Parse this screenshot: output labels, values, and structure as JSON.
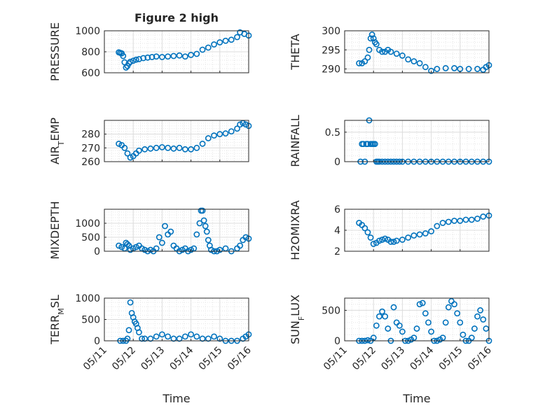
{
  "figure": {
    "title": "Figure 2 high"
  },
  "chart_data": [
    {
      "type": "scatter",
      "panel": "pressure",
      "title": "Figure 2 high",
      "ylabel": "PRESSURE",
      "ylabel_parts": {
        "base": "PRESSURE"
      },
      "ylim": [
        600,
        1000
      ],
      "yticks": [
        600,
        800,
        1000
      ],
      "grid": true,
      "x": [
        1.5,
        1.55,
        1.6,
        1.65,
        1.7,
        1.75,
        1.8,
        1.85,
        1.9,
        2.0,
        2.1,
        2.2,
        2.35,
        2.5,
        2.65,
        2.8,
        3.0,
        3.2,
        3.4,
        3.6,
        3.8,
        4.0,
        4.2,
        4.4,
        4.6,
        4.8,
        5.0,
        5.2,
        5.4,
        5.6,
        5.7,
        5.85,
        6.0
      ],
      "values": [
        795,
        790,
        785,
        760,
        700,
        650,
        665,
        690,
        705,
        715,
        725,
        730,
        740,
        745,
        750,
        755,
        750,
        755,
        760,
        765,
        755,
        770,
        780,
        820,
        840,
        870,
        890,
        905,
        915,
        940,
        985,
        970,
        955
      ]
    },
    {
      "type": "scatter",
      "panel": "theta",
      "ylabel": "THETA",
      "ylabel_parts": {
        "base": "THETA"
      },
      "ylim": [
        289,
        300
      ],
      "yticks": [
        290,
        295,
        300
      ],
      "grid": true,
      "x": [
        1.5,
        1.6,
        1.7,
        1.8,
        1.85,
        1.9,
        1.95,
        2.0,
        2.05,
        2.1,
        2.2,
        2.3,
        2.4,
        2.5,
        2.6,
        2.8,
        3.0,
        3.2,
        3.4,
        3.6,
        3.8,
        4.0,
        4.2,
        4.5,
        4.8,
        5.0,
        5.3,
        5.6,
        5.8,
        5.9,
        6.0
      ],
      "values": [
        291.5,
        291.5,
        292,
        293,
        295,
        298,
        299,
        298,
        297,
        296.5,
        295,
        294.5,
        294.5,
        295,
        294.5,
        294,
        293.5,
        292.5,
        292,
        291.5,
        290.5,
        289.5,
        290,
        290.2,
        290.2,
        290,
        290,
        290,
        289.8,
        290.5,
        291
      ]
    },
    {
      "type": "scatter",
      "panel": "air_temp",
      "ylabel": "AIR_TEMP",
      "ylabel_parts": {
        "base": "AIR",
        "sub": "T",
        "rest": "EMP"
      },
      "ylim": [
        260,
        290
      ],
      "yticks": [
        260,
        270,
        280
      ],
      "grid": true,
      "x": [
        1.5,
        1.6,
        1.7,
        1.8,
        1.9,
        2.0,
        2.1,
        2.2,
        2.4,
        2.6,
        2.8,
        3.0,
        3.2,
        3.4,
        3.6,
        3.8,
        4.0,
        4.2,
        4.4,
        4.6,
        4.8,
        5.0,
        5.2,
        5.4,
        5.6,
        5.7,
        5.8,
        5.9,
        6.0
      ],
      "values": [
        273,
        272,
        270,
        266,
        263,
        264,
        266,
        268,
        269,
        269.5,
        270,
        270.5,
        270,
        269.5,
        270,
        269,
        269,
        270,
        273,
        277,
        279,
        280,
        280.5,
        282,
        284,
        287,
        288,
        287,
        286
      ]
    },
    {
      "type": "scatter",
      "panel": "rainfall",
      "ylabel": "RAINFALL",
      "ylabel_parts": {
        "base": "RAINFALL"
      },
      "ylim": [
        0,
        0.7
      ],
      "yticks": [
        0,
        0.5
      ],
      "grid": true,
      "x": [
        1.55,
        1.6,
        1.65,
        1.7,
        1.75,
        1.8,
        1.85,
        1.9,
        1.95,
        2.0,
        2.05,
        2.1,
        2.15,
        2.2,
        2.3,
        2.4,
        2.5,
        2.6,
        2.7,
        2.8,
        2.9,
        3.0,
        3.2,
        3.4,
        3.6,
        3.8,
        4.0,
        4.2,
        4.4,
        4.6,
        4.8,
        5.0,
        5.2,
        5.4,
        5.6,
        5.8,
        6.0
      ],
      "values": [
        0,
        0.3,
        0.3,
        0,
        0.3,
        0.3,
        0.7,
        0.3,
        0.3,
        0.3,
        0.3,
        0,
        0,
        0,
        0,
        0,
        0,
        0,
        0,
        0,
        0,
        0,
        0,
        0,
        0,
        0,
        0,
        0,
        0,
        0,
        0,
        0,
        0,
        0,
        0,
        0,
        0
      ]
    },
    {
      "type": "scatter",
      "panel": "mixdepth",
      "ylabel": "MIXDEPTH",
      "ylabel_parts": {
        "base": "MIXDEPTH"
      },
      "ylim": [
        0,
        1500
      ],
      "yticks": [
        0,
        500,
        1000
      ],
      "grid": true,
      "x": [
        1.5,
        1.6,
        1.7,
        1.75,
        1.8,
        1.85,
        1.9,
        2.0,
        2.1,
        2.2,
        2.3,
        2.4,
        2.5,
        2.6,
        2.7,
        2.8,
        2.9,
        3.0,
        3.1,
        3.2,
        3.3,
        3.4,
        3.5,
        3.6,
        3.7,
        3.8,
        3.9,
        4.0,
        4.1,
        4.2,
        4.3,
        4.35,
        4.4,
        4.45,
        4.5,
        4.55,
        4.6,
        4.65,
        4.7,
        4.8,
        4.9,
        5.0,
        5.2,
        5.4,
        5.6,
        5.7,
        5.8,
        5.9,
        6.0
      ],
      "values": [
        200,
        150,
        100,
        300,
        250,
        200,
        50,
        100,
        150,
        200,
        100,
        50,
        0,
        50,
        0,
        100,
        500,
        300,
        900,
        600,
        700,
        200,
        100,
        0,
        50,
        100,
        0,
        50,
        100,
        600,
        1000,
        1450,
        1450,
        1100,
        900,
        700,
        400,
        200,
        50,
        0,
        0,
        50,
        100,
        0,
        100,
        200,
        400,
        500,
        450
      ]
    },
    {
      "type": "scatter",
      "panel": "h2omixra",
      "ylabel": "H2OMIXRA",
      "ylabel_parts": {
        "base": "H2OMIXRA"
      },
      "ylim": [
        2,
        6
      ],
      "yticks": [
        2,
        4,
        6
      ],
      "grid": true,
      "x": [
        1.5,
        1.6,
        1.7,
        1.8,
        1.9,
        2.0,
        2.1,
        2.2,
        2.3,
        2.4,
        2.5,
        2.6,
        2.7,
        2.8,
        3.0,
        3.2,
        3.4,
        3.6,
        3.8,
        4.0,
        4.2,
        4.4,
        4.6,
        4.8,
        5.0,
        5.2,
        5.4,
        5.6,
        5.8,
        6.0
      ],
      "values": [
        4.7,
        4.5,
        4.2,
        3.8,
        3.3,
        2.7,
        2.8,
        3.0,
        3.1,
        3.2,
        3.1,
        2.9,
        2.9,
        3.0,
        3.1,
        3.3,
        3.5,
        3.6,
        3.7,
        3.9,
        4.4,
        4.7,
        4.8,
        4.9,
        4.9,
        5.0,
        5.0,
        5.1,
        5.3,
        5.4
      ]
    },
    {
      "type": "scatter",
      "panel": "terr_msl",
      "ylabel": "TERR_MSL",
      "ylabel_parts": {
        "base": "TERR",
        "sub": "M",
        "rest": "SL"
      },
      "ylim": [
        0,
        1000
      ],
      "yticks": [
        0,
        500,
        1000
      ],
      "grid": true,
      "xlabel": "Time",
      "xticks": [
        "05/11",
        "05/12",
        "05/13",
        "05/14",
        "05/15",
        "05/16"
      ],
      "x": [
        1.55,
        1.65,
        1.75,
        1.8,
        1.85,
        1.9,
        1.95,
        2.0,
        2.05,
        2.1,
        2.15,
        2.2,
        2.3,
        2.4,
        2.6,
        2.8,
        3.0,
        3.2,
        3.4,
        3.6,
        3.8,
        4.0,
        4.2,
        4.4,
        4.6,
        4.8,
        5.0,
        5.2,
        5.4,
        5.6,
        5.8,
        5.9,
        6.0
      ],
      "values": [
        0,
        0,
        0,
        50,
        250,
        900,
        650,
        550,
        450,
        400,
        300,
        200,
        50,
        50,
        50,
        100,
        150,
        100,
        50,
        50,
        100,
        150,
        100,
        50,
        50,
        100,
        50,
        0,
        0,
        0,
        50,
        100,
        150
      ]
    },
    {
      "type": "scatter",
      "panel": "sun_flux",
      "ylabel": "SUN_FLUX",
      "ylabel_parts": {
        "base": "SUN",
        "sub": "F",
        "rest": "LUX"
      },
      "ylim": [
        0,
        700
      ],
      "yticks": [
        0,
        500
      ],
      "grid": true,
      "xlabel": "Time",
      "xticks": [
        "05/11",
        "05/12",
        "05/13",
        "05/14",
        "05/15",
        "05/16"
      ],
      "x": [
        1.5,
        1.6,
        1.7,
        1.8,
        1.9,
        2.0,
        2.1,
        2.2,
        2.3,
        2.4,
        2.5,
        2.6,
        2.7,
        2.8,
        2.9,
        3.0,
        3.1,
        3.2,
        3.3,
        3.4,
        3.5,
        3.6,
        3.7,
        3.8,
        3.9,
        4.0,
        4.1,
        4.2,
        4.3,
        4.4,
        4.5,
        4.6,
        4.7,
        4.8,
        4.9,
        5.0,
        5.1,
        5.2,
        5.3,
        5.4,
        5.5,
        5.6,
        5.7,
        5.8,
        5.9,
        6.0
      ],
      "values": [
        0,
        0,
        0,
        10,
        0,
        50,
        250,
        400,
        480,
        400,
        200,
        0,
        550,
        300,
        250,
        150,
        0,
        0,
        20,
        50,
        200,
        600,
        620,
        450,
        300,
        150,
        0,
        0,
        20,
        50,
        300,
        550,
        650,
        600,
        450,
        300,
        100,
        0,
        0,
        50,
        200,
        400,
        500,
        350,
        200,
        0
      ]
    }
  ]
}
